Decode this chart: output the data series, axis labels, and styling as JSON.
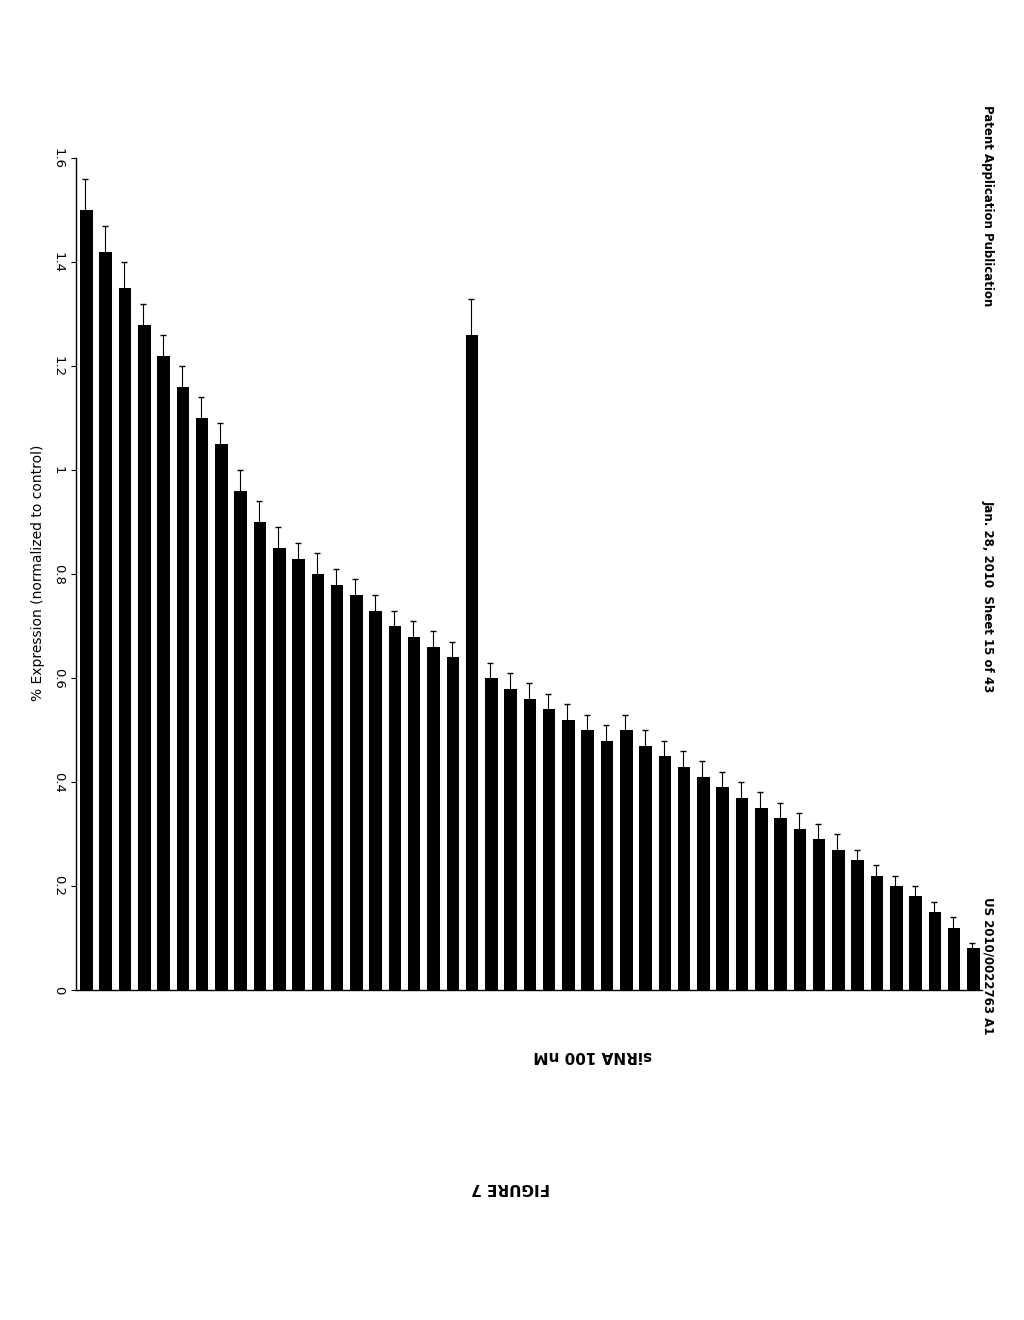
{
  "xlabel": "% Expression (normalized to control)",
  "ylabel_right": "siRNA 100 nM",
  "figure_label": "FIGURE 7",
  "header_left": "Patent Application Publication",
  "header_mid": "Jan. 28, 2010  Sheet 15 of 43",
  "header_right": "US 2010/0022763 A1",
  "bar_color": "#000000",
  "background_color": "#ffffff",
  "xticks": [
    0.0,
    0.2,
    0.4,
    0.6,
    0.8,
    1.0,
    1.2,
    1.4,
    1.6
  ],
  "xtick_labels": [
    "0",
    "0.2",
    "0.4",
    "0.6",
    "0.8",
    "1",
    "1.2",
    "1.4",
    "1.6"
  ],
  "values": [
    1.5,
    1.42,
    1.35,
    1.28,
    1.22,
    1.16,
    1.1,
    1.05,
    0.96,
    0.9,
    0.85,
    0.83,
    0.8,
    0.78,
    0.76,
    0.73,
    0.7,
    0.68,
    0.66,
    0.64,
    1.26,
    0.6,
    0.58,
    0.56,
    0.54,
    0.52,
    0.5,
    0.48,
    0.5,
    0.47,
    0.45,
    0.43,
    0.41,
    0.39,
    0.37,
    0.35,
    0.33,
    0.31,
    0.29,
    0.27,
    0.25,
    0.22,
    0.2,
    0.18,
    0.15,
    0.12,
    0.08
  ],
  "errors": [
    0.06,
    0.05,
    0.05,
    0.04,
    0.04,
    0.04,
    0.04,
    0.04,
    0.04,
    0.04,
    0.04,
    0.03,
    0.04,
    0.03,
    0.03,
    0.03,
    0.03,
    0.03,
    0.03,
    0.03,
    0.07,
    0.03,
    0.03,
    0.03,
    0.03,
    0.03,
    0.03,
    0.03,
    0.03,
    0.03,
    0.03,
    0.03,
    0.03,
    0.03,
    0.03,
    0.03,
    0.03,
    0.03,
    0.03,
    0.03,
    0.02,
    0.02,
    0.02,
    0.02,
    0.02,
    0.02,
    0.01
  ]
}
